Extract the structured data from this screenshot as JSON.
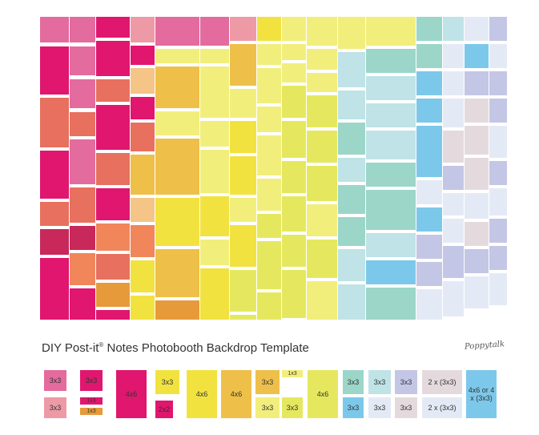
{
  "title": {
    "prefix": "DIY Post-it",
    "reg": "®",
    "suffix": " Notes Photobooth Backdrop Template"
  },
  "logo_text": "Poppytalk",
  "colors": {
    "magenta": "#E0166F",
    "dark_pink": "#C8285A",
    "pink": "#E36B9E",
    "light_pink": "#ED9AA6",
    "coral": "#E8705E",
    "salmon": "#F0865A",
    "orange": "#E79A3A",
    "peach": "#F4C587",
    "gold": "#EEC04A",
    "yellow": "#F2E240",
    "light_yellow": "#F2EE7C",
    "lime": "#E5E85F",
    "mint": "#9BD6C9",
    "light_teal": "#BFE3E6",
    "sky": "#7CC8EA",
    "pale_blue": "#E4EAF5",
    "lavender": "#C4C6E6",
    "pale_mauve": "#E4DADD"
  },
  "legend": [
    {
      "label": "3x3",
      "color": "#E36B9E"
    },
    {
      "label": "3x3",
      "color": "#ED9AA6"
    },
    {
      "label": "3x3",
      "color": "#E0166F"
    },
    {
      "label": "1x3",
      "color": "#E0166F"
    },
    {
      "label": "1x3",
      "color": "#E79A3A"
    },
    {
      "label": "4x6",
      "color": "#E0166F"
    },
    {
      "label": "3x3",
      "color": "#F2E240"
    },
    {
      "label": "2x2",
      "color": "#E0166F"
    },
    {
      "label": "4x6",
      "color": "#F2E240"
    },
    {
      "label": "4x6",
      "color": "#EEC04A"
    },
    {
      "label": "3x3",
      "color": "#EEC04A"
    },
    {
      "label": "1x3",
      "color": "#F2EE7C"
    },
    {
      "label": "3x3",
      "color": "#F2EE7C"
    },
    {
      "label": "3x3",
      "color": "#E5E85F"
    },
    {
      "label": "4x6",
      "color": "#E5E85F"
    },
    {
      "label": "3x3",
      "color": "#9BD6C9"
    },
    {
      "label": "3x3",
      "color": "#BFE3E6"
    },
    {
      "label": "3x3",
      "color": "#C4C6E6"
    },
    {
      "label": "2 x (3x3)",
      "color": "#E4DADD"
    },
    {
      "label": "3x3",
      "color": "#7CC8EA"
    },
    {
      "label": "3x3",
      "color": "#E4EAF5"
    },
    {
      "label": "3x3",
      "color": "#E4DADD"
    },
    {
      "label": "2 x (3x3)",
      "color": "#E4EAF5"
    },
    {
      "label": "4x6 or 4 x (3x3)",
      "color": "#7CC8EA"
    }
  ]
}
